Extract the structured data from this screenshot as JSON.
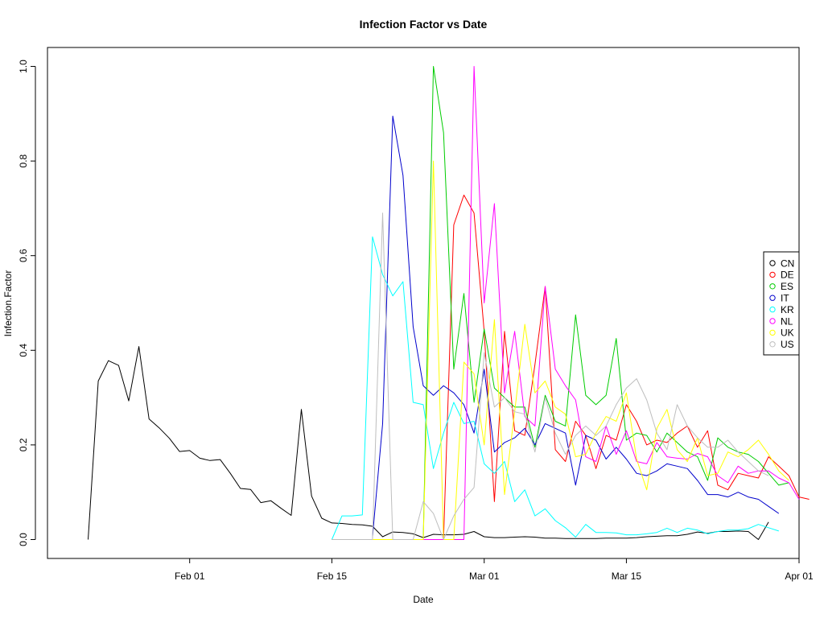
{
  "chart_data": {
    "type": "line",
    "title": "Infection Factor vs Date",
    "xlabel": "Date",
    "ylabel": "Infection.Factor",
    "x_start": "2020-01-22",
    "x_ticks": [
      {
        "date": "2020-02-01",
        "label": "Feb 01"
      },
      {
        "date": "2020-02-15",
        "label": "Feb 15"
      },
      {
        "date": "2020-03-01",
        "label": "Mar 01"
      },
      {
        "date": "2020-03-15",
        "label": "Mar 15"
      },
      {
        "date": "2020-04-01",
        "label": "Apr 01"
      }
    ],
    "xlim": [
      "2020-01-18",
      "2020-04-01"
    ],
    "y_ticks": [
      0.0,
      0.2,
      0.4,
      0.6,
      0.8,
      1.0
    ],
    "y_tick_labels": [
      "0.0",
      "0.2",
      "0.4",
      "0.6",
      "0.8",
      "1.0"
    ],
    "ylim": [
      -0.04,
      1.04
    ],
    "grid": false,
    "legend_position": "right",
    "series": [
      {
        "name": "CN",
        "color": "#000000",
        "start": "2020-01-22",
        "values": [
          0.0,
          0.335,
          0.378,
          0.368,
          0.293,
          0.408,
          0.255,
          0.236,
          0.214,
          0.186,
          0.188,
          0.172,
          0.167,
          0.169,
          0.14,
          0.108,
          0.106,
          0.078,
          0.082,
          0.066,
          0.051,
          0.275,
          0.092,
          0.045,
          0.035,
          0.034,
          0.032,
          0.031,
          0.028,
          0.006,
          0.016,
          0.015,
          0.012,
          0.004,
          0.011,
          0.01,
          0.01,
          0.011,
          0.017,
          0.006,
          0.004,
          0.004,
          0.005,
          0.006,
          0.005,
          0.003,
          0.003,
          0.002,
          0.002,
          0.002,
          0.002,
          0.003,
          0.003,
          0.003,
          0.004,
          0.006,
          0.007,
          0.008,
          0.008,
          0.011,
          0.016,
          0.013,
          0.017,
          0.017,
          0.018,
          0.017,
          0.0,
          0.037
        ]
      },
      {
        "name": "DE",
        "color": "#ff0000",
        "start": "2020-02-15",
        "values": [
          0.0,
          0.0,
          0.0,
          0.0,
          0.0,
          0.0,
          0.0,
          0.0,
          0.0,
          0.0,
          0.0,
          0.0,
          0.665,
          0.728,
          0.69,
          0.44,
          0.08,
          0.44,
          0.23,
          0.22,
          0.37,
          0.535,
          0.19,
          0.165,
          0.25,
          0.22,
          0.15,
          0.22,
          0.21,
          0.285,
          0.25,
          0.2,
          0.21,
          0.205,
          0.225,
          0.24,
          0.195,
          0.23,
          0.115,
          0.105,
          0.14,
          0.135,
          0.13,
          0.175,
          0.155,
          0.135,
          0.09,
          0.085
        ]
      },
      {
        "name": "ES",
        "color": "#00cc00",
        "start": "2020-02-15",
        "values": [
          0.0,
          0.0,
          0.0,
          0.0,
          0.0,
          0.0,
          0.0,
          0.0,
          0.0,
          0.0,
          1.0,
          0.86,
          0.36,
          0.52,
          0.29,
          0.445,
          0.32,
          0.3,
          0.28,
          0.28,
          0.195,
          0.305,
          0.25,
          0.24,
          0.475,
          0.305,
          0.285,
          0.305,
          0.425,
          0.21,
          0.225,
          0.22,
          0.185,
          0.225,
          0.205,
          0.185,
          0.175,
          0.125,
          0.215,
          0.195,
          0.185,
          0.18,
          0.165,
          0.14,
          0.115,
          0.12
        ]
      },
      {
        "name": "IT",
        "color": "#0000cc",
        "start": "2020-02-19",
        "values": [
          0.005,
          0.245,
          0.895,
          0.77,
          0.45,
          0.325,
          0.305,
          0.325,
          0.31,
          0.285,
          0.225,
          0.36,
          0.185,
          0.205,
          0.215,
          0.235,
          0.2,
          0.245,
          0.235,
          0.225,
          0.115,
          0.22,
          0.21,
          0.17,
          0.195,
          0.17,
          0.14,
          0.135,
          0.145,
          0.16,
          0.155,
          0.15,
          0.125,
          0.095,
          0.095,
          0.09,
          0.1,
          0.09,
          0.085,
          0.07,
          0.055
        ]
      },
      {
        "name": "KR",
        "color": "#00ffff",
        "start": "2020-02-15",
        "values": [
          0.0,
          0.05,
          0.05,
          0.052,
          0.64,
          0.56,
          0.515,
          0.545,
          0.29,
          0.285,
          0.15,
          0.225,
          0.29,
          0.245,
          0.25,
          0.16,
          0.14,
          0.165,
          0.08,
          0.105,
          0.05,
          0.065,
          0.04,
          0.025,
          0.005,
          0.032,
          0.015,
          0.015,
          0.014,
          0.01,
          0.01,
          0.012,
          0.015,
          0.024,
          0.015,
          0.024,
          0.02,
          0.012,
          0.017,
          0.02,
          0.02,
          0.023,
          0.032,
          0.025,
          0.018
        ]
      },
      {
        "name": "NL",
        "color": "#ff00ff",
        "start": "2020-02-15",
        "values": [
          0.0,
          0.0,
          0.0,
          0.0,
          0.0,
          0.0,
          0.0,
          0.0,
          0.0,
          0.0,
          0.0,
          0.0,
          0.0,
          0.0,
          1.0,
          0.5,
          0.71,
          0.31,
          0.44,
          0.26,
          0.24,
          0.535,
          0.36,
          0.325,
          0.295,
          0.175,
          0.165,
          0.24,
          0.18,
          0.23,
          0.165,
          0.16,
          0.205,
          0.175,
          0.172,
          0.17,
          0.182,
          0.175,
          0.135,
          0.12,
          0.155,
          0.14,
          0.145,
          0.145,
          0.13,
          0.12,
          0.085
        ]
      },
      {
        "name": "UK",
        "color": "#ffff00",
        "start": "2020-02-15",
        "values": [
          0.0,
          0.0,
          0.0,
          0.0,
          0.0,
          0.0,
          0.0,
          0.0,
          0.0,
          0.0,
          0.8,
          0.0,
          0.0,
          0.375,
          0.35,
          0.2,
          0.465,
          0.095,
          0.27,
          0.455,
          0.31,
          0.335,
          0.28,
          0.265,
          0.175,
          0.18,
          0.225,
          0.26,
          0.25,
          0.31,
          0.17,
          0.105,
          0.235,
          0.275,
          0.19,
          0.165,
          0.215,
          0.135,
          0.14,
          0.185,
          0.175,
          0.19,
          0.21,
          0.18,
          0.145,
          0.125
        ]
      },
      {
        "name": "US",
        "color": "#bebebe",
        "start": "2020-02-15",
        "values": [
          0.0,
          0.0,
          0.0,
          0.0,
          0.0,
          0.69,
          0.0,
          0.0,
          0.0,
          0.08,
          0.055,
          0.0,
          0.05,
          0.085,
          0.11,
          0.395,
          0.28,
          0.3,
          0.27,
          0.265,
          0.185,
          0.3,
          0.225,
          0.18,
          0.22,
          0.24,
          0.22,
          0.24,
          0.285,
          0.32,
          0.34,
          0.295,
          0.225,
          0.19,
          0.285,
          0.24,
          0.215,
          0.195,
          0.195,
          0.21,
          0.185,
          0.165,
          0.145,
          0.135
        ]
      }
    ]
  }
}
